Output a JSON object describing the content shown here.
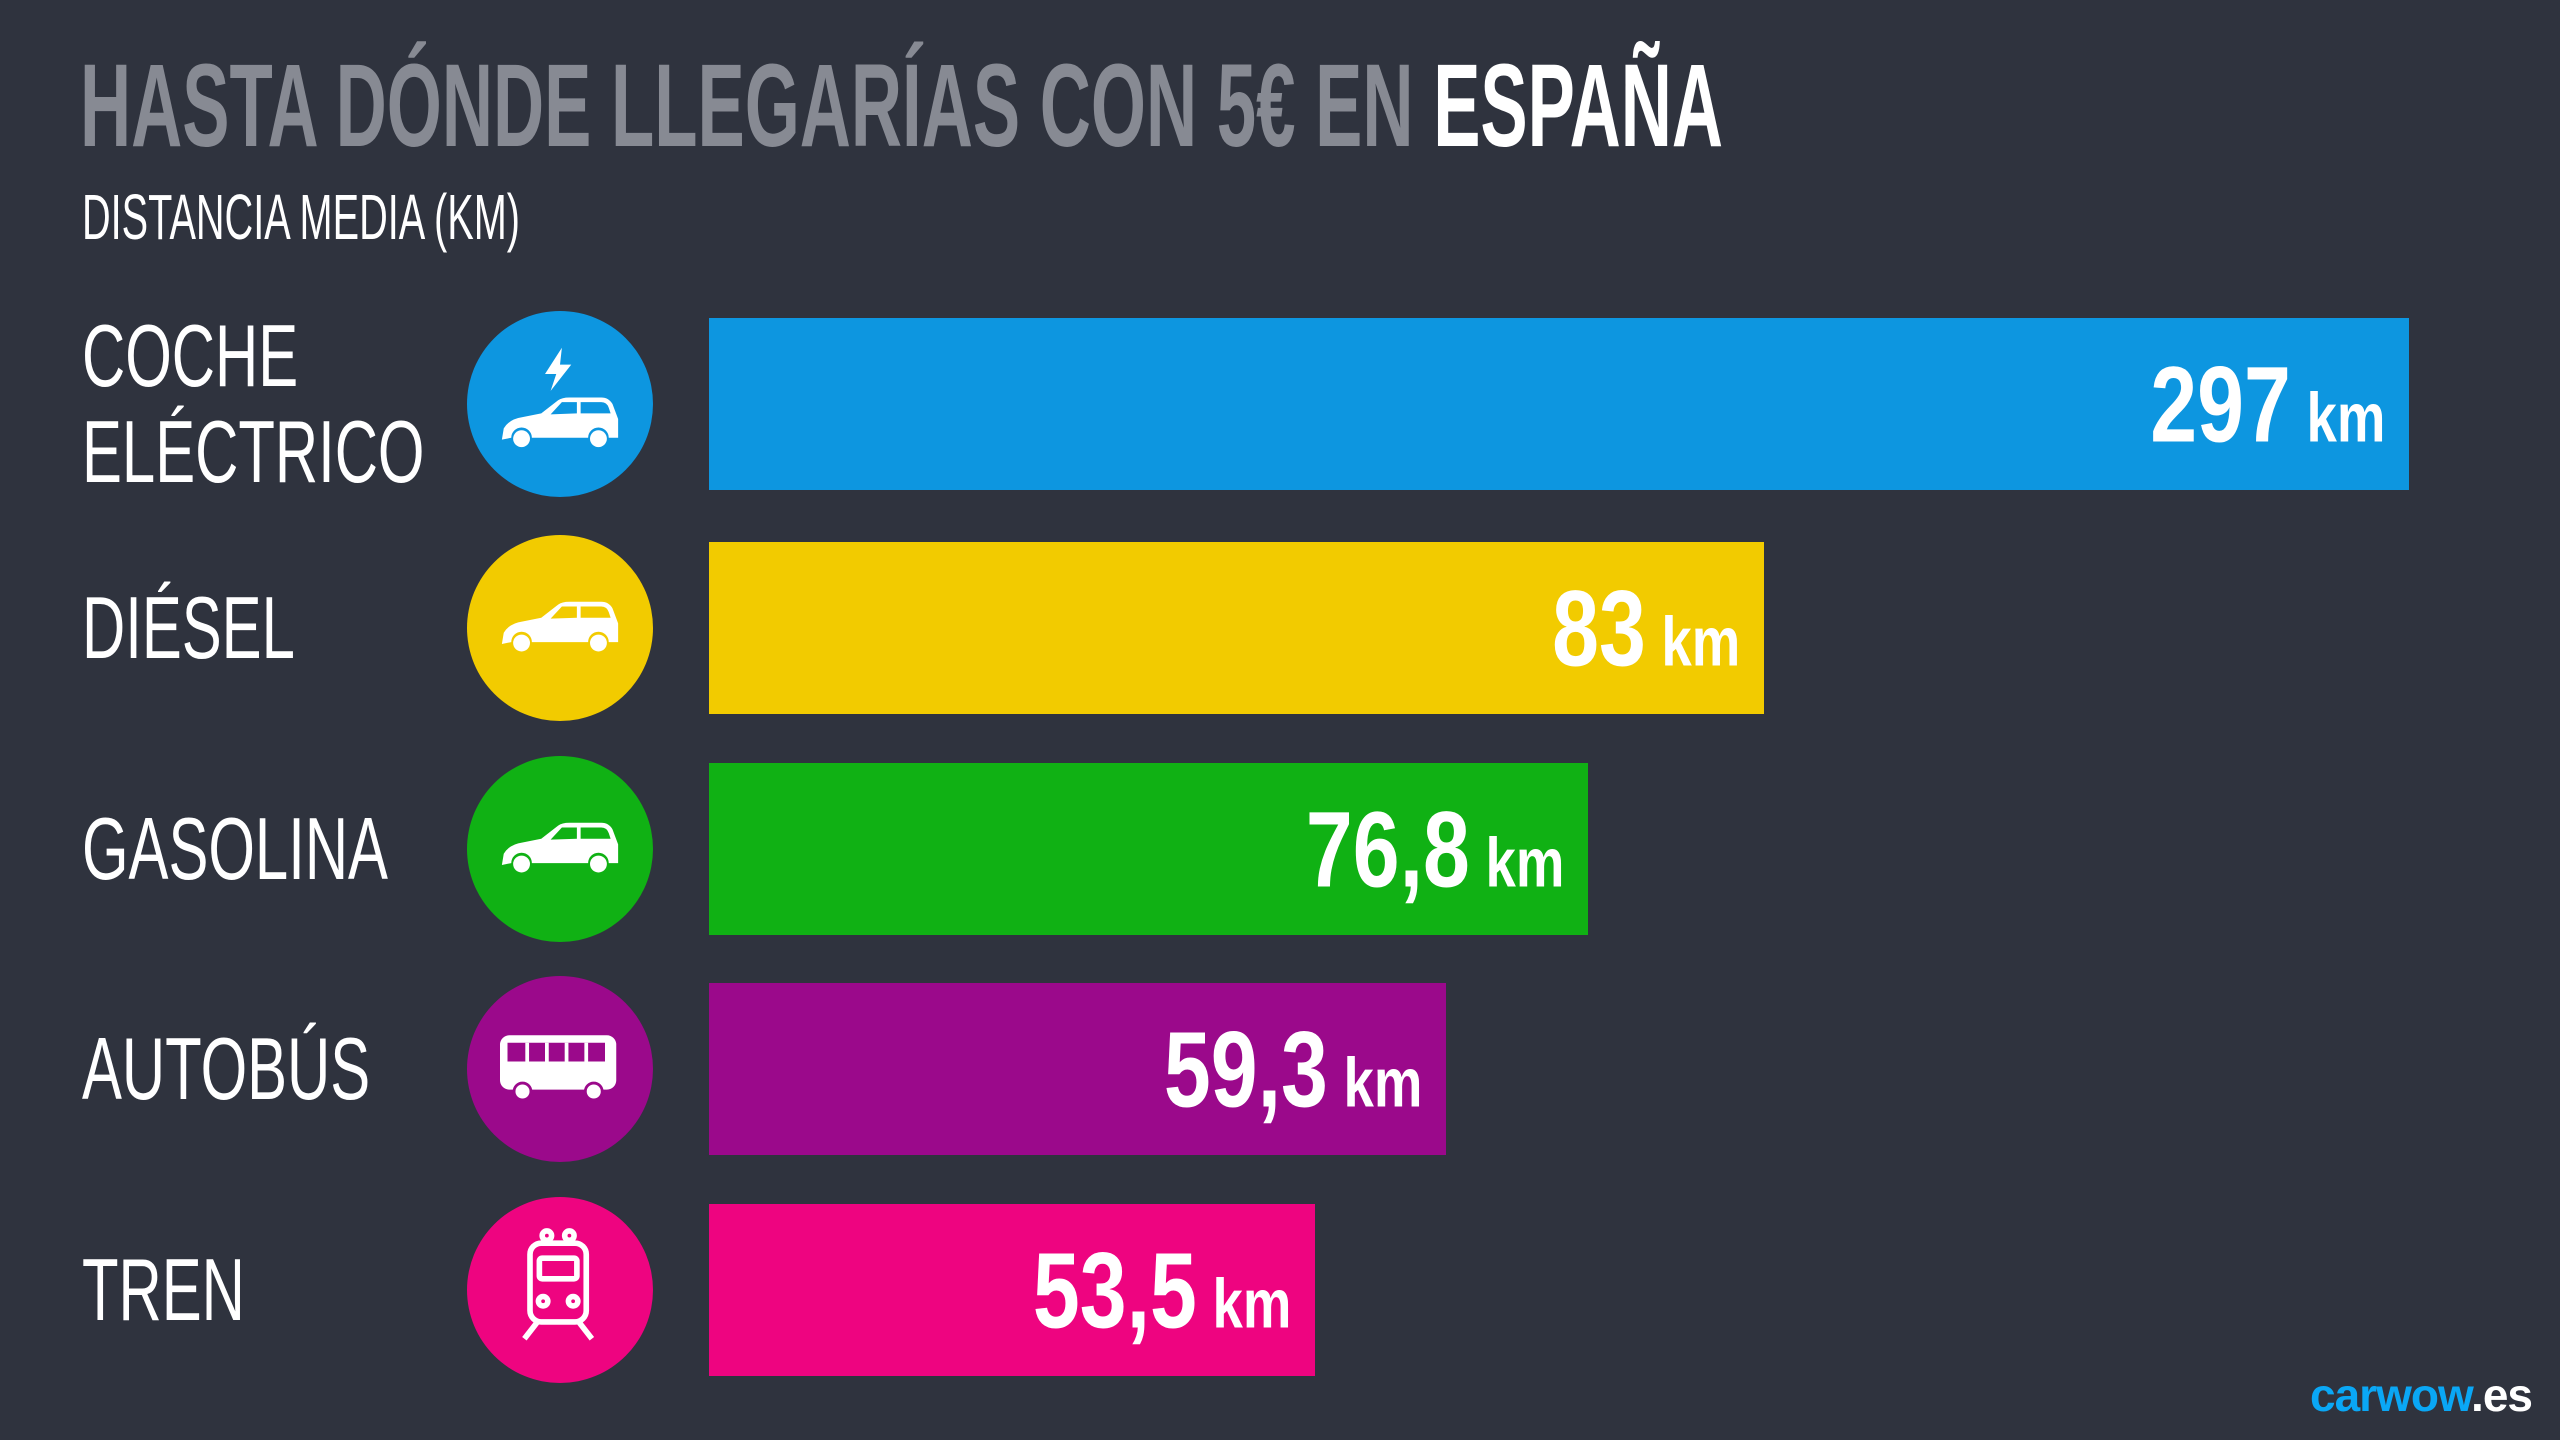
{
  "title": {
    "prefix": "HASTA DÓNDE LLEGARÍAS CON 5€ EN ",
    "highlight": "ESPAÑA"
  },
  "subtitle": "DISTANCIA MEDIA (KM)",
  "logo": {
    "brand": "carwow",
    "tld": ".es"
  },
  "chart_data": {
    "type": "bar",
    "orientation": "horizontal",
    "title": "HASTA DÓNDE LLEGARÍAS CON 5€ EN ESPAÑA",
    "subtitle": "DISTANCIA MEDIA (KM)",
    "unit": "km",
    "categories": [
      "COCHE ELÉCTRICO",
      "DIÉSEL",
      "GASOLINA",
      "AUTOBÚS",
      "TREN"
    ],
    "values": [
      297,
      83,
      76.8,
      59.3,
      53.5
    ],
    "value_labels": [
      "297",
      "83",
      "76,8",
      "59,3",
      "53,5"
    ],
    "colors": [
      "#0d96e0",
      "#f2cb00",
      "#10b114",
      "#9b098b",
      "#ee0480"
    ],
    "icons": [
      "electric-car-icon",
      "car-icon",
      "car-icon",
      "bus-icon",
      "train-icon"
    ],
    "grid": false
  }
}
